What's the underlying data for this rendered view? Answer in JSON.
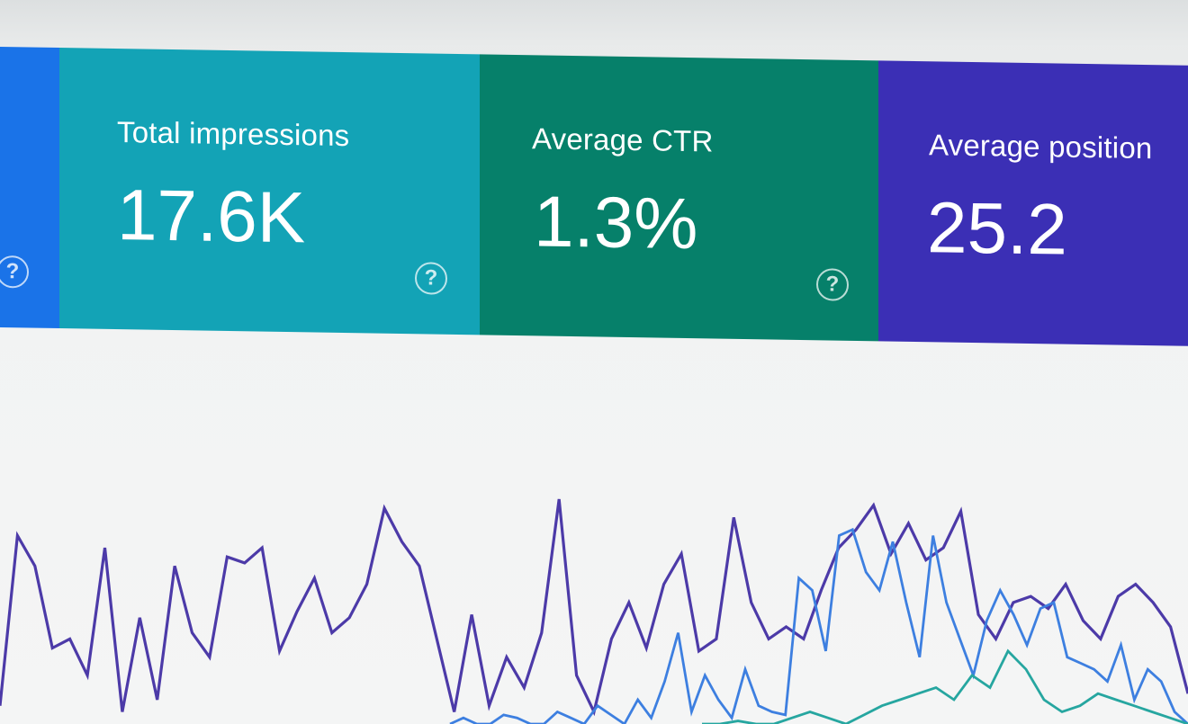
{
  "metrics": {
    "impressions": {
      "label": "Total impressions",
      "value": "17.6K",
      "help": "?"
    },
    "ctr": {
      "label": "Average CTR",
      "value": "1.3%",
      "help": "?"
    },
    "position": {
      "label": "Average position",
      "value": "25.2"
    },
    "clicks": {
      "help": "?"
    }
  },
  "colors": {
    "clicks": "#1a73e8",
    "impressions": "#13a3b6",
    "ctr": "#06806a",
    "position": "#3b2fb5",
    "series_purple": "#4c3aa8",
    "series_blue": "#3d7fe0",
    "series_teal": "#26a6a0"
  },
  "chart_data": {
    "type": "line",
    "title": "",
    "xlabel": "",
    "ylabel": "",
    "grid": false,
    "series": [
      {
        "values": [
          6,
          62,
          52,
          25,
          28,
          16,
          58,
          4,
          35,
          8,
          52,
          30,
          22,
          55,
          53,
          58,
          24,
          37,
          48,
          30,
          35,
          46,
          71,
          60,
          52,
          28,
          4,
          36,
          6,
          22,
          12,
          30,
          74,
          16,
          4,
          28,
          40,
          25,
          46,
          56,
          24,
          28,
          68,
          40,
          28,
          32,
          28,
          44,
          58,
          64,
          72,
          56,
          66,
          54,
          58,
          70,
          36,
          28,
          40,
          42,
          38,
          46,
          34,
          28,
          42,
          46,
          40,
          32,
          10
        ]
      },
      {
        "values": [
          0,
          2,
          0,
          0,
          3,
          2,
          0,
          0,
          4,
          2,
          0,
          6,
          3,
          0,
          8,
          2,
          14,
          30,
          4,
          16,
          8,
          2,
          18,
          6,
          4,
          3,
          48,
          44,
          24,
          62,
          64,
          50,
          44,
          60,
          40,
          22,
          62,
          40,
          28,
          16,
          34,
          44,
          36,
          26,
          38,
          40,
          22,
          20,
          18,
          14,
          26,
          8,
          18,
          14,
          4,
          0
        ]
      },
      {
        "values": [
          0,
          0,
          1,
          0,
          0,
          2,
          4,
          2,
          0,
          3,
          6,
          8,
          10,
          12,
          8,
          16,
          12,
          24,
          18,
          8,
          4,
          6,
          10,
          8,
          6,
          4,
          2,
          0
        ]
      }
    ]
  }
}
